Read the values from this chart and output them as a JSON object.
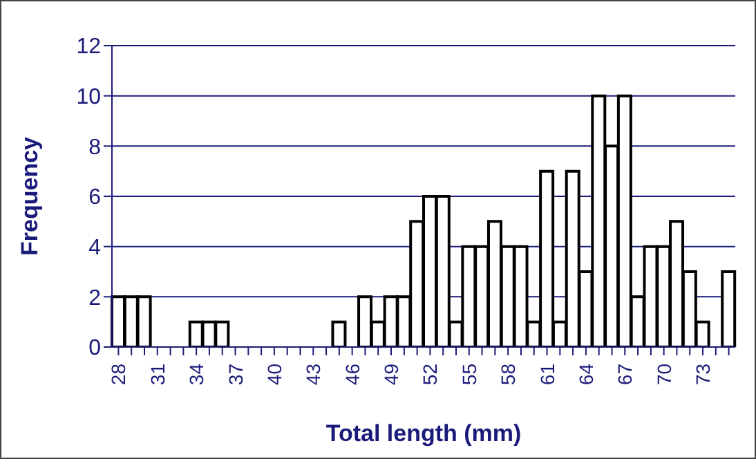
{
  "chart_data": {
    "type": "bar",
    "xlabel": "Total length (mm)",
    "ylabel": "Frequency",
    "categories": [
      "28",
      null,
      null,
      "31",
      null,
      null,
      "34",
      null,
      null,
      "37",
      null,
      null,
      "40",
      null,
      null,
      "43",
      null,
      null,
      "46",
      null,
      null,
      "49",
      null,
      null,
      "52",
      null,
      null,
      "55",
      null,
      null,
      "58",
      null,
      null,
      "61",
      null,
      null,
      "64",
      null,
      null,
      "67",
      null,
      null,
      "70",
      null,
      null,
      "73",
      null,
      null
    ],
    "values": [
      2,
      2,
      2,
      0,
      0,
      0,
      1,
      1,
      1,
      0,
      0,
      0,
      0,
      0,
      0,
      0,
      0,
      1,
      0,
      2,
      1,
      2,
      2,
      5,
      6,
      6,
      1,
      4,
      4,
      5,
      4,
      4,
      1,
      7,
      1,
      7,
      3,
      10,
      8,
      10,
      2,
      4,
      4,
      5,
      3,
      1,
      0,
      3
    ],
    "color": "#ffffff",
    "ylim": [
      0,
      12
    ],
    "yticks": [
      0,
      2,
      4,
      6,
      8,
      10,
      12
    ],
    "grid": "y"
  }
}
